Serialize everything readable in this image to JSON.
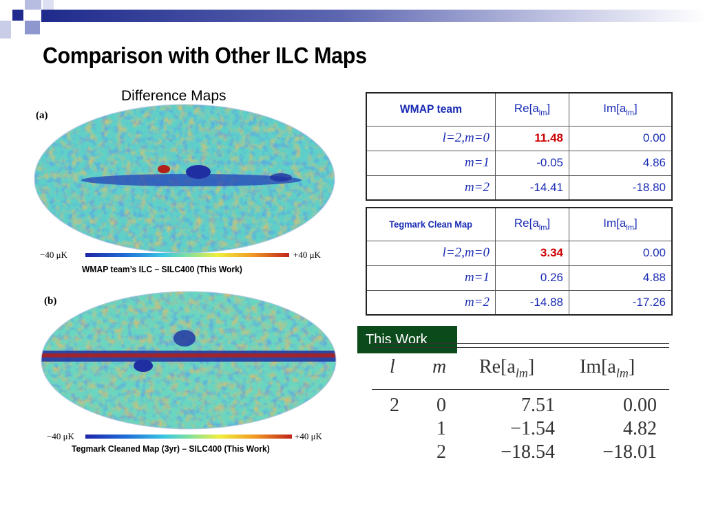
{
  "title": "Comparison with Other ILC Maps",
  "diff_heading": "Difference Maps",
  "colors": {
    "accent_navy": "#1f2b8c",
    "badge_green": "#0b4a1b",
    "highlight_red": "#cc0000",
    "table_text": "#1a2cb4"
  },
  "maps": [
    {
      "letter": "(a)",
      "scale_min": "−40 μK",
      "scale_max": "+40 μK",
      "caption": "WMAP team’s ILC – SILC400 (This Work)"
    },
    {
      "letter": "(b)",
      "scale_min": "−40 μK",
      "scale_max": "+40 μK",
      "caption": "Tegmark Cleaned Map (3yr) – SILC400 (This Work)"
    }
  ],
  "tables": [
    {
      "name": "WMAP team",
      "col_re": "Re[a",
      "col_im": "Im[a",
      "sub": "lm",
      "close": "]",
      "rows": [
        {
          "label": "l=2,m=0",
          "re": "11.48",
          "im": "0.00"
        },
        {
          "label": "m=1",
          "re": "-0.05",
          "im": "4.86"
        },
        {
          "label": "m=2",
          "re": "-14.41",
          "im": "-18.80"
        }
      ]
    },
    {
      "name": "Tegmark Clean Map",
      "col_re": "Re[a",
      "col_im": "Im[a",
      "sub": "lm",
      "close": "]",
      "rows": [
        {
          "label": "l=2,m=0",
          "re": "3.34",
          "im": "0.00"
        },
        {
          "label": "m=1",
          "re": "0.26",
          "im": "4.88"
        },
        {
          "label": "m=2",
          "re": "-14.88",
          "im": "-17.26"
        }
      ]
    }
  ],
  "this_work": {
    "badge": "This Work",
    "headers": {
      "l": "l",
      "m": "m",
      "re": "Re[a",
      "im": "Im[a",
      "sub": "lm",
      "close": "]"
    },
    "l_value": "2",
    "rows": [
      {
        "m": "0",
        "re": "7.51",
        "im": "0.00"
      },
      {
        "m": "1",
        "re": "−1.54",
        "im": "4.82"
      },
      {
        "m": "2",
        "re": "−18.54",
        "im": "−18.01"
      }
    ]
  }
}
